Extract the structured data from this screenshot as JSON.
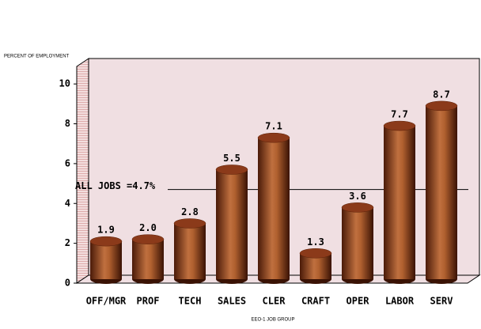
{
  "chart_data": {
    "type": "bar",
    "y_axis_label": "PERCENT OF EMPLOYMENT",
    "x_axis_label": "EEO-1 JOB GROUP",
    "categories": [
      "OFF/MGR",
      "PROF",
      "TECH",
      "SALES",
      "CLER",
      "CRAFT",
      "OPER",
      "LABOR",
      "SERV"
    ],
    "values": [
      1.9,
      2.0,
      2.8,
      5.5,
      7.1,
      1.3,
      3.6,
      7.7,
      8.7
    ],
    "value_labels": [
      "1.9",
      "2.0",
      "2.8",
      "5.5",
      "7.1",
      "1.3",
      "3.6",
      "7.7",
      "8.7"
    ],
    "color": "#8b3a1a",
    "ylim": [
      0,
      10.8
    ],
    "yticks": [
      0,
      2,
      4,
      6,
      8,
      10
    ],
    "reference_line": {
      "value": 4.7,
      "label": "ALL JOBS =4.7%"
    }
  }
}
